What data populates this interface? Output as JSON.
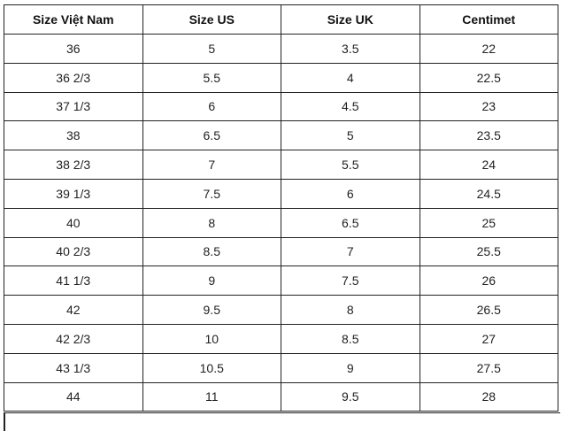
{
  "table": {
    "headers": [
      "Size Việt Nam",
      "Size US",
      "Size UK",
      "Centimet"
    ],
    "rows": [
      [
        "36",
        "5",
        "3.5",
        "22"
      ],
      [
        "36 2/3",
        "5.5",
        "4",
        "22.5"
      ],
      [
        "37 1/3",
        "6",
        "4.5",
        "23"
      ],
      [
        "38",
        "6.5",
        "5",
        "23.5"
      ],
      [
        "38 2/3",
        "7",
        "5.5",
        "24"
      ],
      [
        "39 1/3",
        "7.5",
        "6",
        "24.5"
      ],
      [
        "40",
        "8",
        "6.5",
        "25"
      ],
      [
        "40 2/3",
        "8.5",
        "7",
        "25.5"
      ],
      [
        "41 1/3",
        "9",
        "7.5",
        "26"
      ],
      [
        "42",
        "9.5",
        "8",
        "26.5"
      ],
      [
        "42 2/3",
        "10",
        "8.5",
        "27"
      ],
      [
        "43 1/3",
        "10.5",
        "9",
        "27.5"
      ],
      [
        "44",
        "11",
        "9.5",
        "28"
      ]
    ]
  }
}
